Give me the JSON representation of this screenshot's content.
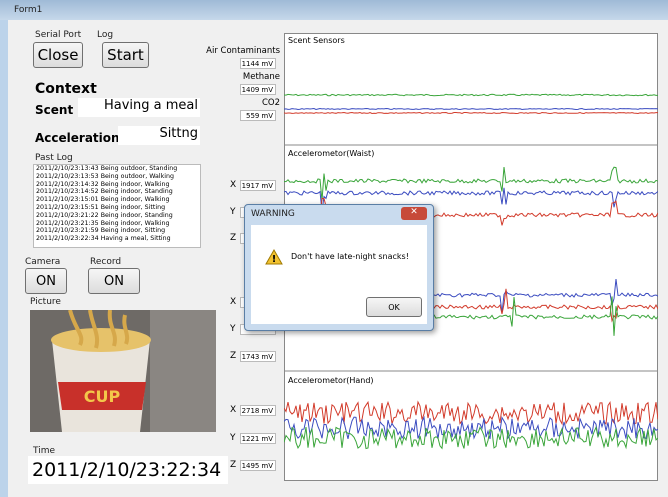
{
  "window": {
    "title": "Form1"
  },
  "serial_port": {
    "label": "Serial Port",
    "button": "Close"
  },
  "log": {
    "label": "Log",
    "button": "Start"
  },
  "context": {
    "title": "Context",
    "scent_label": "Scent",
    "scent_value": "Having a meal",
    "acceleration_label": "Acceleration",
    "acceleration_value": "Sittng"
  },
  "past_log": {
    "label": "Past Log",
    "entries": [
      "2011/2/10/23:13:43 Being outdoor, Standing",
      "2011/2/10/23:13:53 Being outdoor, Walking",
      "2011/2/10/23:14:32 Being indoor, Walking",
      "2011/2/10/23:14:52 Being indoor, Standing",
      "2011/2/10/23:15:01 Being indoor, Walking",
      "2011/2/10/23:15:51 Being indoor, Sitting",
      "2011/2/10/23:21:22 Being indoor, Standing",
      "2011/2/10/23:21:35 Being indoor, Walking",
      "2011/2/10/23:21:59 Being indoor, Sitting",
      "2011/2/10/23:22:34 Having a meal, Sitting"
    ]
  },
  "camera": {
    "label": "Camera",
    "button": "ON"
  },
  "record": {
    "label": "Record",
    "button": "ON"
  },
  "picture": {
    "label": "Picture"
  },
  "time": {
    "label": "Time",
    "value": "2011/2/10/23:22:34"
  },
  "unit": "mV",
  "scent_sensors": [
    {
      "label": "Air Contaminants",
      "value": 1144
    },
    {
      "label": "Methane",
      "value": 1409
    },
    {
      "label": "CO2",
      "value": 559
    }
  ],
  "axis_rows": [
    {
      "label": "X",
      "value": 1917
    },
    {
      "label": "Y"
    },
    {
      "label": "Z"
    },
    {
      "label": "X"
    },
    {
      "label": "Y"
    },
    {
      "label": "Z",
      "value": 1743
    },
    {
      "label": "X",
      "value": 2718
    },
    {
      "label": "Y",
      "value": 1221
    },
    {
      "label": "Z",
      "value": 1495
    }
  ],
  "plots": {
    "scent": "Scent Sensors",
    "waist": "Accelerometor(Waist)",
    "hand": "Accelerometor(Hand)"
  },
  "dialog": {
    "title": "WARNING",
    "message": "Don't have late-night snacks!",
    "button": "OK"
  }
}
